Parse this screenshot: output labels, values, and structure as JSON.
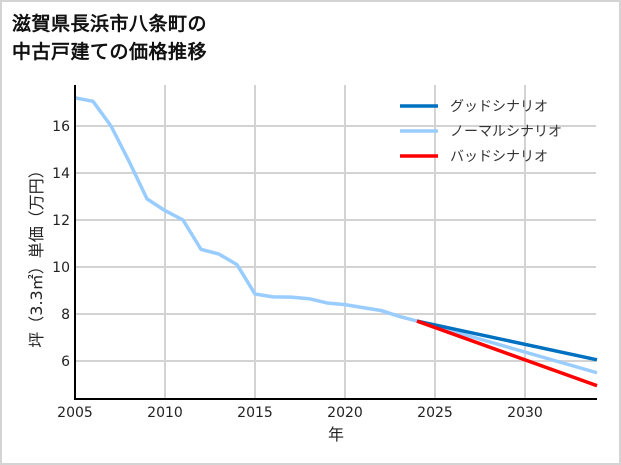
{
  "title_lines": [
    "滋賀県長浜市八条町の",
    "中古戸建ての価格推移"
  ],
  "chart_data": {
    "type": "line",
    "title": "滋賀県長浜市八条町の中古戸建ての価格推移",
    "xlabel": "年",
    "ylabel": "坪（3.3㎡）単価（万円）",
    "xlim": [
      2005,
      2034
    ],
    "ylim": [
      4.5,
      17.8
    ],
    "x_ticks": [
      2005,
      2010,
      2015,
      2020,
      2025,
      2030
    ],
    "y_ticks": [
      6,
      8,
      10,
      12,
      14,
      16
    ],
    "grid": true,
    "legend_position": "upper right",
    "series": [
      {
        "name": "グッドシナリオ",
        "color": "#0070c0",
        "x": [
          2024,
          2034
        ],
        "values": [
          7.7,
          6.05
        ]
      },
      {
        "name": "ノーマルシナリオ",
        "color": "#99ccff",
        "x": [
          2005,
          2006,
          2007,
          2008,
          2009,
          2010,
          2011,
          2012,
          2013,
          2014,
          2015,
          2016,
          2017,
          2018,
          2019,
          2020,
          2021,
          2022,
          2023,
          2024,
          2034
        ],
        "values": [
          17.2,
          17.05,
          16.0,
          14.5,
          12.9,
          12.4,
          12.0,
          10.75,
          10.55,
          10.1,
          8.85,
          8.73,
          8.72,
          8.65,
          8.47,
          8.4,
          8.27,
          8.15,
          7.9,
          7.7,
          5.5
        ]
      },
      {
        "name": "バッドシナリオ",
        "color": "#ff0000",
        "x": [
          2024,
          2034
        ],
        "values": [
          7.7,
          4.95
        ]
      }
    ]
  }
}
